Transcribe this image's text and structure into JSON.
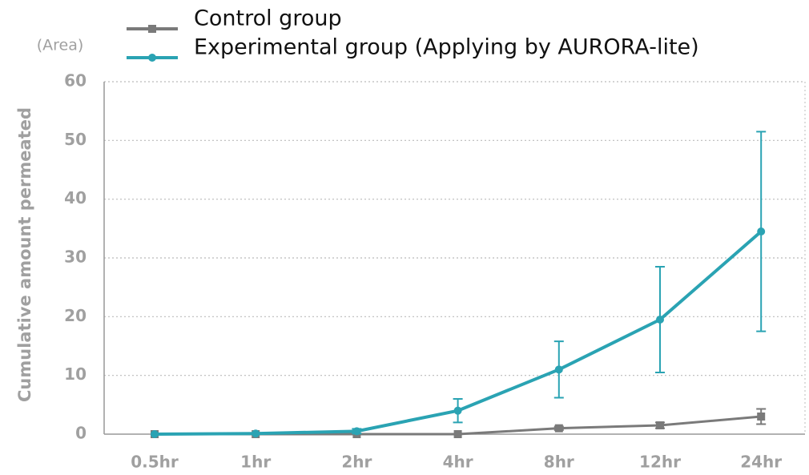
{
  "chart_data": {
    "type": "line",
    "y_label": "Cumulative amount permeated",
    "y_unit": "(Area)",
    "categories": [
      "0.5hr",
      "1hr",
      "2hr",
      "4hr",
      "8hr",
      "12hr",
      "24hr"
    ],
    "series": [
      {
        "name": "Control group",
        "color": "#7a7a7a",
        "values": [
          0,
          0,
          0,
          0,
          1,
          1.5,
          3
        ],
        "errors": [
          0,
          0,
          0,
          0,
          0.3,
          0.5,
          1.3
        ]
      },
      {
        "name": "Experimental group (Applying by AURORA-lite)",
        "color": "#2aa3b3",
        "values": [
          0,
          0.1,
          0.5,
          4,
          11,
          19.5,
          34.5
        ],
        "errors": [
          0,
          0,
          0.4,
          2,
          4.8,
          9,
          17
        ]
      }
    ],
    "ylim": [
      0,
      60
    ],
    "yticks": [
      0,
      10,
      20,
      30,
      40,
      50,
      60
    ],
    "grid": true
  }
}
